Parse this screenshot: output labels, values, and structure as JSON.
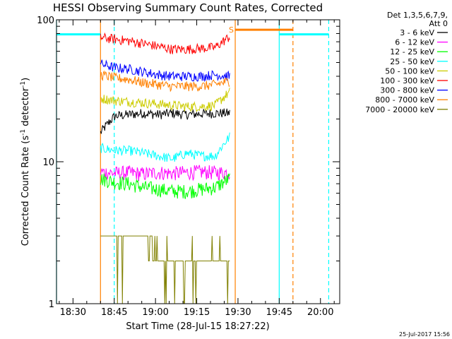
{
  "chart_data": {
    "type": "line",
    "title": "HESSI Observing Summary Count Rates, Corrected",
    "xlabel": "Start Time (28-Jul-15 18:27:22)",
    "ylabel": "Corrected Count Rate (s",
    "ylabel_sup": "-1",
    "ylabel_tail": " detector",
    "ylabel_end": ")",
    "yscale": "log",
    "xlim": [
      "18:24",
      "20:07"
    ],
    "ylim": [
      1,
      100
    ],
    "x_ticks": [
      "18:30",
      "18:45",
      "19:00",
      "19:15",
      "19:30",
      "19:45",
      "20:00"
    ],
    "y_ticks": [
      {
        "value": 1,
        "label": "1"
      },
      {
        "value": 10,
        "label": "10"
      },
      {
        "value": 100,
        "label": "100"
      }
    ],
    "legend_header": [
      "Det 1,3,5,6,7,9,",
      "Att 0"
    ],
    "series": [
      {
        "name": "3 - 6 keV",
        "color": "#000000",
        "start": "18:40",
        "end": "19:27",
        "level": 21.5,
        "values": [
          16,
          21,
          21.5,
          22,
          21.5,
          22,
          21.5,
          21.8,
          22,
          22
        ]
      },
      {
        "name": "6 - 12 keV",
        "color": "#ff00ff",
        "start": "18:40",
        "end": "19:27",
        "level": 8.4,
        "values": [
          8.5,
          8.3,
          8.4,
          8.2,
          8.4,
          8.3,
          8.4,
          8.5,
          8.4,
          8.4
        ]
      },
      {
        "name": "12 - 25 keV",
        "color": "#00ff00",
        "start": "18:40",
        "end": "19:27",
        "level": 6.8,
        "values": [
          7.6,
          7.2,
          7.0,
          6.6,
          6.4,
          6.2,
          6.2,
          6.4,
          6.6,
          7.6
        ]
      },
      {
        "name": "25 - 50 keV",
        "color": "#00ffff",
        "start": "18:40",
        "end": "19:27",
        "level": 11.5,
        "values": [
          12.5,
          12,
          12,
          11.5,
          11,
          10.5,
          11.5,
          11,
          11,
          15
        ]
      },
      {
        "name": "50 - 100 keV",
        "color": "#cccc00",
        "start": "18:40",
        "end": "19:27",
        "level": 25.5,
        "values": [
          28,
          27,
          26.5,
          26,
          25.5,
          25,
          24.5,
          24.5,
          25,
          31
        ]
      },
      {
        "name": "100 - 300 keV",
        "color": "#ff0000",
        "start": "18:40",
        "end": "19:27",
        "level": 67,
        "values": [
          75,
          73,
          71,
          68,
          65,
          62,
          62,
          63,
          64,
          76
        ]
      },
      {
        "name": "300 - 800 keV",
        "color": "#0000ff",
        "start": "18:40",
        "end": "19:27",
        "level": 42,
        "values": [
          49,
          46,
          45,
          43,
          41,
          40,
          40,
          40,
          41,
          40
        ]
      },
      {
        "name": "800 - 7000 keV",
        "color": "#ff8000",
        "start": "18:40",
        "end": "19:27",
        "level": 36,
        "values": [
          41,
          39,
          38,
          36,
          35,
          34,
          34,
          34,
          35,
          37
        ]
      },
      {
        "name": "7000 - 20000 keV",
        "color": "#808000",
        "start": "18:40",
        "end": "19:27",
        "level": 2.4,
        "values": [
          3,
          3,
          3,
          3,
          2,
          2,
          2,
          2,
          2,
          2
        ]
      }
    ],
    "markers": {
      "night_color": "#00ffff",
      "saa_color": "#ff8000",
      "saa_label": "S",
      "night_bars": [
        {
          "start": "18:24",
          "end": "18:40",
          "level": 79
        },
        {
          "start": "19:45",
          "end": "20:03",
          "level": 79
        }
      ],
      "night_solid_lines": [
        "18:24",
        "19:45"
      ],
      "night_dashed_lines": [
        "18:45",
        "20:03"
      ],
      "saa_bar": {
        "start": "19:29",
        "end": "19:50",
        "level": 85
      },
      "saa_solid_lines": [
        "18:40",
        "19:29"
      ],
      "saa_dashed_lines": [
        "19:50"
      ]
    },
    "grid": false,
    "legend_position": "right"
  },
  "timestamp": "25-Jul-2017 15:56"
}
